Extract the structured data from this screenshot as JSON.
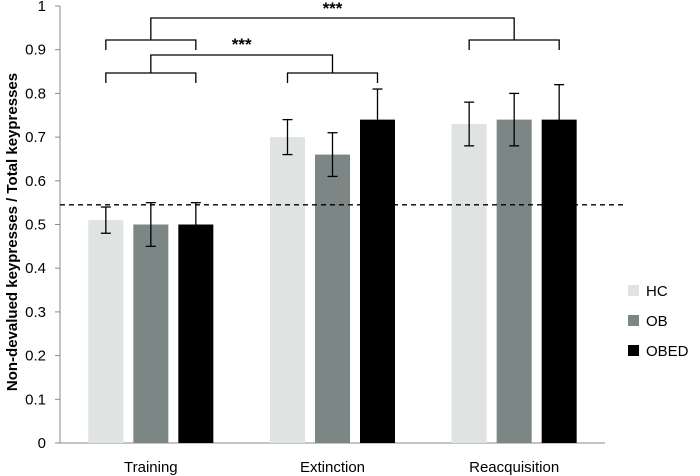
{
  "chart_data": {
    "type": "bar",
    "title": "",
    "xlabel": "",
    "ylabel": "Non-devalued keypresses / Total keypresses",
    "ylim": [
      0,
      1
    ],
    "yticks": [
      "0",
      "0.1",
      "0.2",
      "0.3",
      "0.4",
      "0.5",
      "0.6",
      "0.7",
      "0.8",
      "0.9",
      "1"
    ],
    "categories": [
      "Training",
      "Extinction",
      "Reacquisition"
    ],
    "series": [
      {
        "name": "HC",
        "color": "#dfe3e2",
        "values": [
          0.51,
          0.7,
          0.73
        ],
        "errors": [
          0.03,
          0.04,
          0.05
        ]
      },
      {
        "name": "OB",
        "color": "#7c8785",
        "values": [
          0.5,
          0.66,
          0.74
        ],
        "errors": [
          0.05,
          0.05,
          0.06
        ]
      },
      {
        "name": "OBED",
        "color": "#000000",
        "values": [
          0.5,
          0.74,
          0.74
        ],
        "errors": [
          0.05,
          0.07,
          0.08
        ]
      }
    ],
    "reference_line": {
      "value": 0.545,
      "style": "dashed"
    },
    "legend": {
      "position": "right"
    },
    "grid": false,
    "significance": [
      {
        "label": "***",
        "between": [
          "Training",
          "Reacquisition"
        ]
      },
      {
        "label": "***",
        "between": [
          "Training",
          "Extinction"
        ]
      }
    ]
  }
}
